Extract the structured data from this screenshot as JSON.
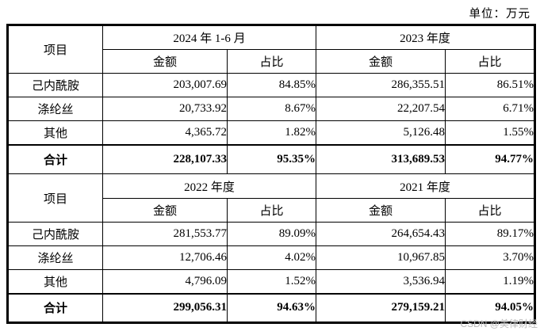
{
  "unit_label": "单位：万元",
  "watermark": "CSDN @美律财经",
  "table": {
    "sections": [
      {
        "item_header": "项目",
        "periods": [
          "2024 年 1-6 月",
          "2023 年度"
        ],
        "sub_headers": [
          "金额",
          "占比",
          "金额",
          "占比"
        ],
        "rows": [
          {
            "item": "己内酰胺",
            "cells": [
              "203,007.69",
              "84.85%",
              "286,355.51",
              "86.51%"
            ]
          },
          {
            "item": "涤纶丝",
            "cells": [
              "20,733.92",
              "8.67%",
              "22,207.54",
              "6.71%"
            ]
          },
          {
            "item": "其他",
            "cells": [
              "4,365.72",
              "1.82%",
              "5,126.48",
              "1.55%"
            ]
          },
          {
            "item": "合计",
            "cells": [
              "228,107.33",
              "95.35%",
              "313,689.53",
              "94.77%"
            ]
          }
        ]
      },
      {
        "item_header": "项目",
        "periods": [
          "2022 年度",
          "2021 年度"
        ],
        "sub_headers": [
          "金额",
          "占比",
          "金额",
          "占比"
        ],
        "rows": [
          {
            "item": "己内酰胺",
            "cells": [
              "281,553.77",
              "89.09%",
              "264,654.43",
              "89.17%"
            ]
          },
          {
            "item": "涤纶丝",
            "cells": [
              "12,706.46",
              "4.02%",
              "10,967.85",
              "3.70%"
            ]
          },
          {
            "item": "其他",
            "cells": [
              "4,796.09",
              "1.52%",
              "3,536.94",
              "1.19%"
            ]
          },
          {
            "item": "合计",
            "cells": [
              "299,056.31",
              "94.63%",
              "279,159.21",
              "94.05%"
            ]
          }
        ]
      }
    ]
  }
}
